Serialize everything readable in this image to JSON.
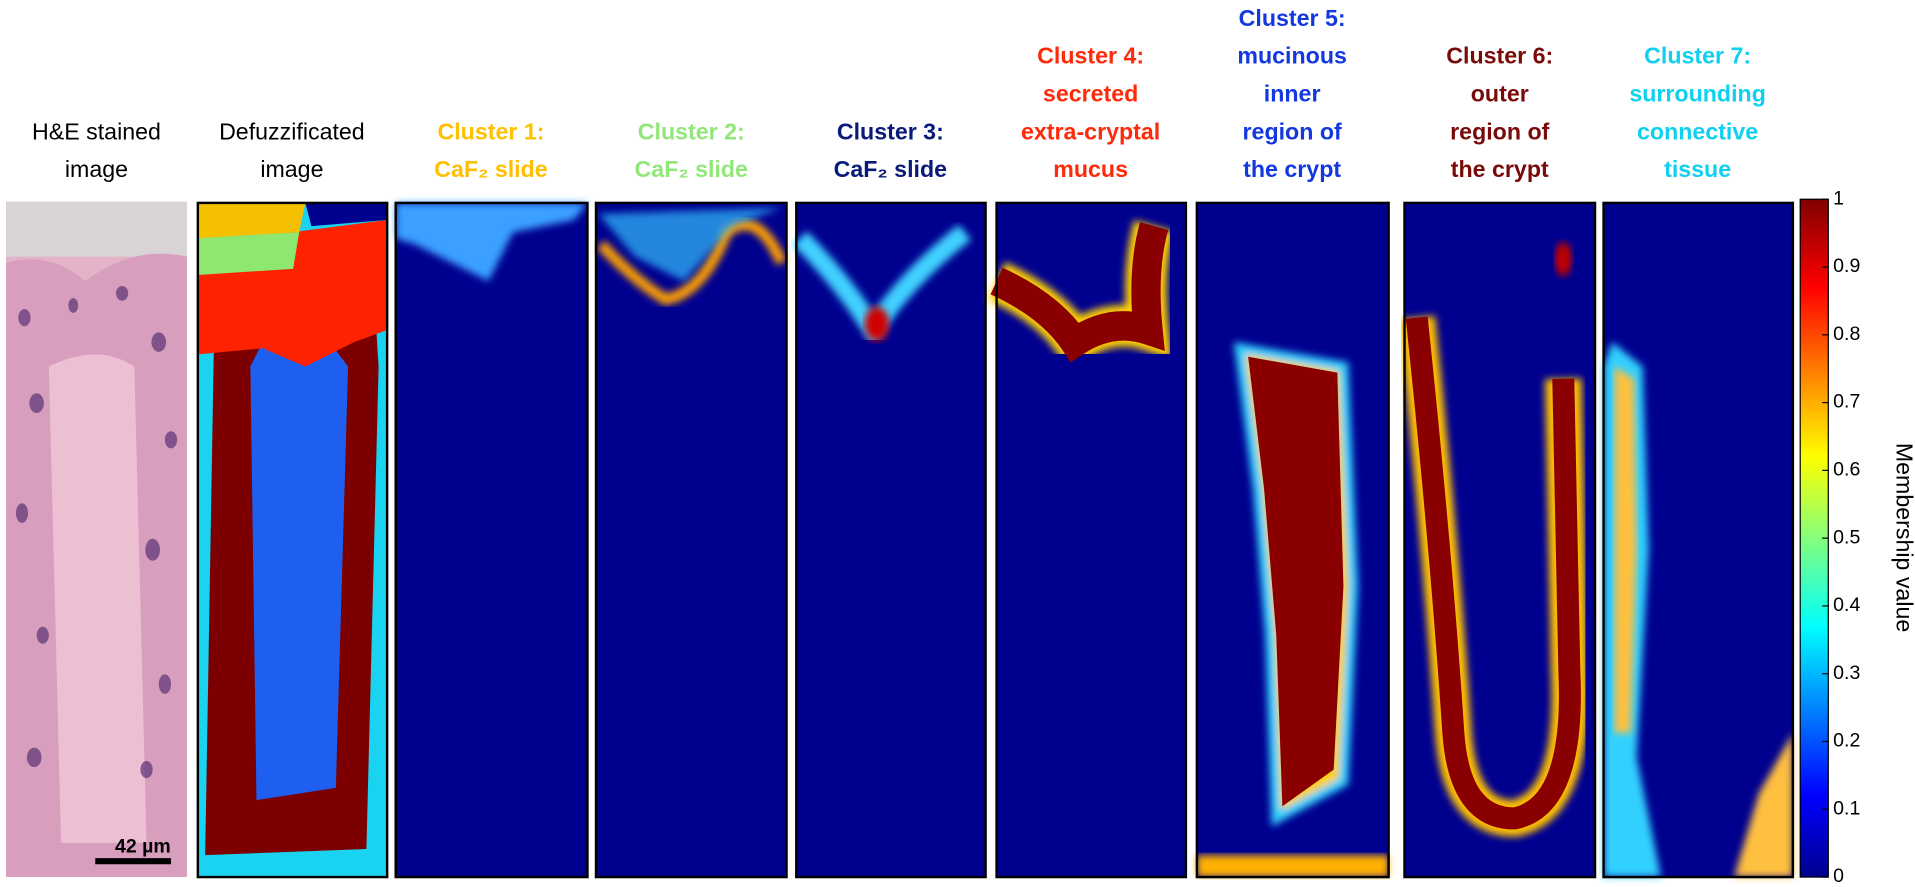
{
  "panels": [
    {
      "title": [
        "H&E stained",
        "image"
      ],
      "color": "#000000"
    },
    {
      "title": [
        "Defuzzificated",
        "image"
      ],
      "color": "#000000"
    },
    {
      "title": [
        "Cluster 1:",
        "CaF₂ slide"
      ],
      "color": "#ffc000"
    },
    {
      "title": [
        "Cluster 2:",
        "CaF₂ slide"
      ],
      "color": "#92e67a"
    },
    {
      "title": [
        "Cluster 3:",
        "CaF₂ slide"
      ],
      "color": "#0a1a7a"
    },
    {
      "title": [
        "Cluster 4:",
        "secreted",
        "extra-cryptal",
        "mucus"
      ],
      "color": "#ff2a0a"
    },
    {
      "title": [
        "Cluster 5:",
        "mucinous",
        "inner",
        "region of",
        "the crypt"
      ],
      "color": "#1438e0"
    },
    {
      "title": [
        "Cluster 6:",
        "outer",
        "region of",
        "the crypt"
      ],
      "color": "#7a0a0a"
    },
    {
      "title": [
        "Cluster 7:",
        "surrounding",
        "connective",
        "tissue"
      ],
      "color": "#10d0f0"
    }
  ],
  "scale_bar": "42 µm",
  "colorbar": {
    "label": "Membership value",
    "lim": [
      0,
      1
    ],
    "ticks": [
      0,
      0.1,
      0.2,
      0.3,
      0.4,
      0.5,
      0.6,
      0.7,
      0.8,
      0.9,
      1
    ]
  }
}
